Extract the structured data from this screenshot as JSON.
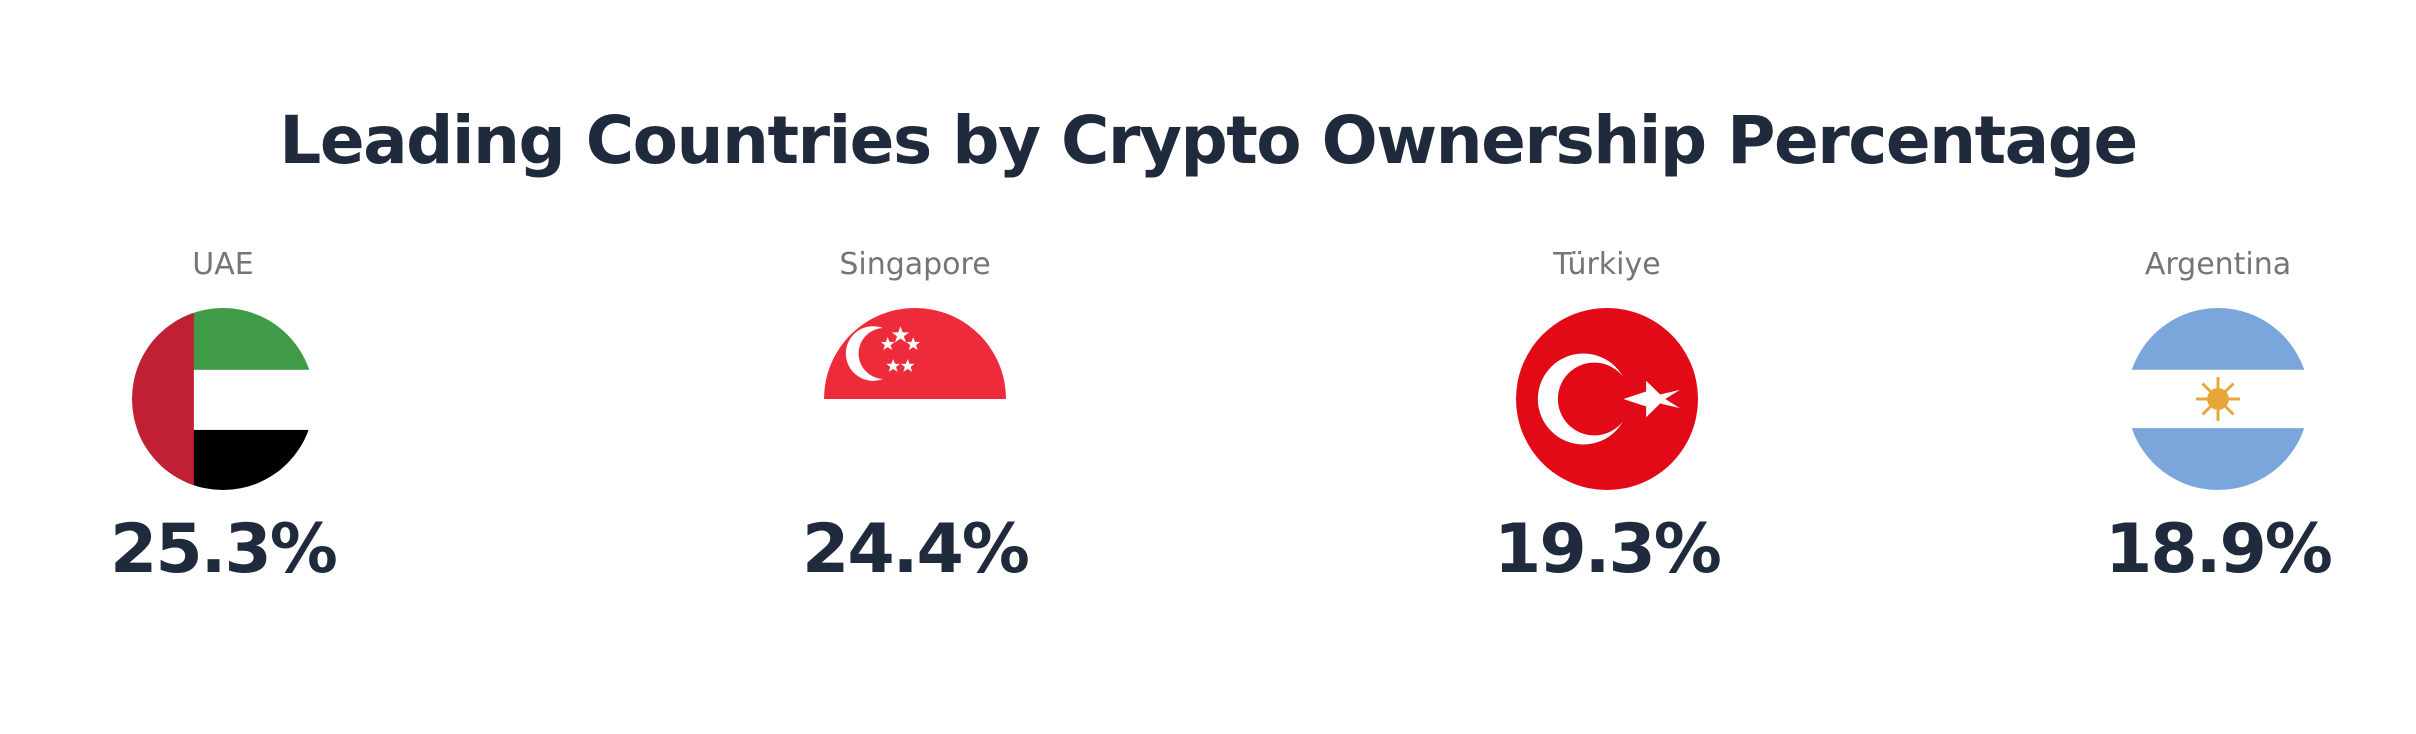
{
  "title": "Leading Countries by Crypto Ownership Percentage",
  "countries": [
    {
      "name": "UAE",
      "percent": "25.3%",
      "flag_icon": "uae-flag-icon"
    },
    {
      "name": "Singapore",
      "percent": "24.4%",
      "flag_icon": "singapore-flag-icon"
    },
    {
      "name": "Türkiye",
      "percent": "19.3%",
      "flag_icon": "turkiye-flag-icon"
    },
    {
      "name": "Argentina",
      "percent": "18.9%",
      "flag_icon": "argentina-flag-icon"
    }
  ],
  "colors": {
    "text_dark": "#1f2a3c",
    "text_muted": "#757575",
    "uae_red": "#c11f34",
    "uae_green": "#3f9b47",
    "singapore_red": "#ee2b3b",
    "turkiye_red": "#e30a17",
    "argentina_blue": "#7aa6dc",
    "argentina_sun": "#e8a53a"
  }
}
